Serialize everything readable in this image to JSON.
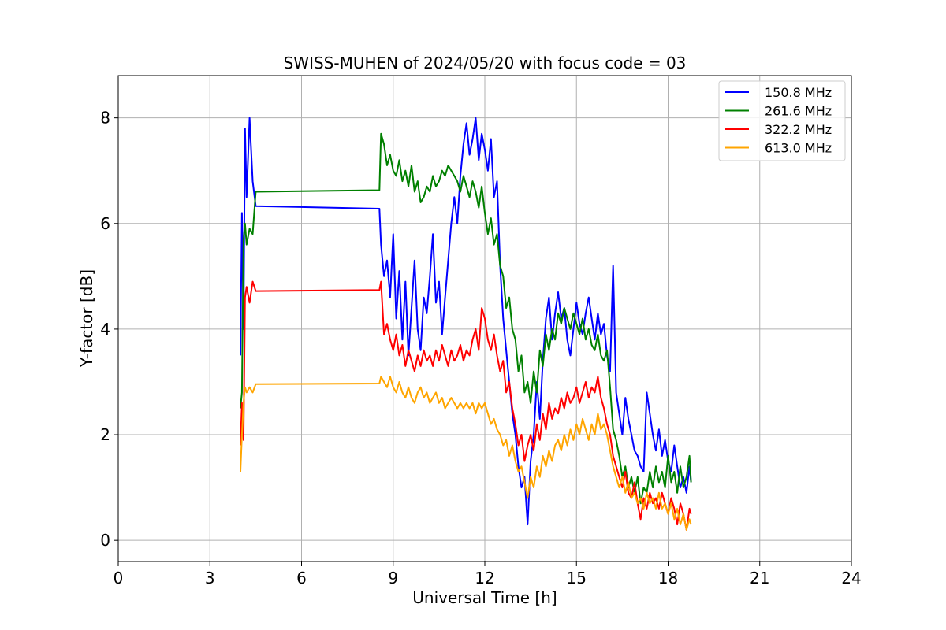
{
  "chart_data": {
    "type": "line",
    "title": "SWISS-MUHEN of 2024/05/20 with focus code = 03",
    "xlabel": "Universal Time [h]",
    "ylabel": "Y-factor [dB]",
    "xlim": [
      0,
      24
    ],
    "ylim": [
      -0.4,
      8.8
    ],
    "xticks": [
      0,
      3,
      6,
      9,
      12,
      15,
      18,
      21,
      24
    ],
    "yticks": [
      0,
      2,
      4,
      6,
      8
    ],
    "xtick_labels": [
      "0",
      "3",
      "6",
      "9",
      "12",
      "15",
      "18",
      "21",
      "24"
    ],
    "ytick_labels": [
      "0",
      "2",
      "4",
      "6",
      "8"
    ],
    "grid": true,
    "legend_position": "top-right",
    "series": [
      {
        "name": "150.8 MHz",
        "color": "#0000ff",
        "x": [
          4.0,
          4.05,
          4.1,
          4.15,
          4.2,
          4.3,
          4.4,
          4.5,
          8.55,
          8.6,
          8.7,
          8.8,
          8.9,
          9.0,
          9.1,
          9.2,
          9.3,
          9.4,
          9.5,
          9.6,
          9.7,
          9.8,
          9.9,
          10.0,
          10.1,
          10.2,
          10.3,
          10.4,
          10.5,
          10.6,
          10.7,
          10.8,
          10.9,
          11.0,
          11.1,
          11.2,
          11.3,
          11.4,
          11.5,
          11.6,
          11.7,
          11.8,
          11.9,
          12.0,
          12.1,
          12.2,
          12.3,
          12.4,
          12.5,
          12.6,
          12.7,
          12.8,
          12.9,
          13.0,
          13.1,
          13.2,
          13.3,
          13.4,
          13.5,
          13.6,
          13.7,
          13.8,
          13.9,
          14.0,
          14.1,
          14.2,
          14.3,
          14.4,
          14.5,
          14.6,
          14.7,
          14.8,
          14.9,
          15.0,
          15.1,
          15.2,
          15.3,
          15.4,
          15.5,
          15.6,
          15.7,
          15.8,
          15.9,
          16.0,
          16.1,
          16.2,
          16.3,
          16.4,
          16.5,
          16.6,
          16.7,
          16.8,
          16.9,
          17.0,
          17.1,
          17.2,
          17.3,
          17.4,
          17.5,
          17.6,
          17.7,
          17.8,
          17.9,
          18.0,
          18.1,
          18.2,
          18.3,
          18.4,
          18.5,
          18.6,
          18.7,
          18.75
        ],
        "y": [
          3.5,
          6.2,
          4.0,
          7.8,
          6.5,
          8.0,
          6.8,
          6.33,
          6.28,
          5.6,
          5.0,
          5.3,
          4.6,
          5.8,
          4.2,
          5.1,
          3.8,
          4.9,
          3.5,
          4.4,
          5.3,
          4.0,
          3.6,
          4.6,
          4.3,
          5.0,
          5.8,
          4.5,
          4.9,
          3.9,
          4.6,
          5.3,
          6.0,
          6.5,
          6.0,
          6.9,
          7.5,
          7.9,
          7.3,
          7.6,
          8.0,
          7.2,
          7.7,
          7.4,
          7.0,
          7.6,
          6.5,
          6.8,
          5.2,
          4.2,
          3.6,
          3.0,
          2.4,
          2.0,
          1.4,
          1.0,
          1.2,
          0.3,
          1.5,
          2.0,
          3.0,
          2.3,
          3.4,
          4.2,
          4.6,
          3.8,
          4.3,
          4.7,
          4.2,
          4.4,
          3.8,
          3.5,
          4.0,
          4.5,
          4.1,
          3.9,
          4.3,
          4.6,
          4.2,
          3.8,
          4.3,
          3.9,
          4.1,
          3.5,
          3.2,
          5.2,
          2.8,
          2.4,
          2.0,
          2.7,
          2.3,
          2.0,
          1.7,
          1.6,
          1.4,
          1.3,
          2.8,
          2.4,
          2.0,
          1.7,
          2.1,
          1.6,
          1.9,
          1.5,
          1.3,
          1.8,
          1.4,
          1.0,
          1.2,
          0.9,
          1.4,
          1.1
        ]
      },
      {
        "name": "261.6 MHz",
        "color": "#008000",
        "x": [
          4.0,
          4.05,
          4.1,
          4.15,
          4.2,
          4.3,
          4.4,
          4.5,
          8.55,
          8.6,
          8.7,
          8.8,
          8.9,
          9.0,
          9.1,
          9.2,
          9.3,
          9.4,
          9.5,
          9.6,
          9.7,
          9.8,
          9.9,
          10.0,
          10.1,
          10.2,
          10.3,
          10.4,
          10.5,
          10.6,
          10.7,
          10.8,
          10.9,
          11.0,
          11.1,
          11.2,
          11.3,
          11.4,
          11.5,
          11.6,
          11.7,
          11.8,
          11.9,
          12.0,
          12.1,
          12.2,
          12.3,
          12.4,
          12.5,
          12.6,
          12.7,
          12.8,
          12.9,
          13.0,
          13.1,
          13.2,
          13.3,
          13.4,
          13.5,
          13.6,
          13.7,
          13.8,
          13.9,
          14.0,
          14.1,
          14.2,
          14.3,
          14.4,
          14.5,
          14.6,
          14.7,
          14.8,
          14.9,
          15.0,
          15.1,
          15.2,
          15.3,
          15.4,
          15.5,
          15.6,
          15.7,
          15.8,
          15.9,
          16.0,
          16.1,
          16.2,
          16.3,
          16.4,
          16.5,
          16.6,
          16.7,
          16.8,
          16.9,
          17.0,
          17.1,
          17.2,
          17.3,
          17.4,
          17.5,
          17.6,
          17.7,
          17.8,
          17.9,
          18.0,
          18.1,
          18.2,
          18.3,
          18.4,
          18.5,
          18.6,
          18.7,
          18.75
        ],
        "y": [
          2.5,
          2.8,
          5.7,
          6.0,
          5.6,
          5.9,
          5.8,
          6.6,
          6.63,
          7.7,
          7.5,
          7.1,
          7.3,
          7.0,
          6.9,
          7.2,
          6.8,
          7.0,
          6.7,
          7.1,
          6.6,
          6.8,
          6.4,
          6.5,
          6.7,
          6.6,
          6.9,
          6.7,
          6.8,
          7.0,
          6.9,
          7.1,
          7.0,
          6.9,
          6.8,
          6.6,
          6.9,
          6.7,
          6.5,
          6.8,
          6.6,
          6.3,
          6.7,
          6.2,
          5.8,
          6.1,
          5.6,
          5.8,
          5.2,
          5.0,
          4.4,
          4.6,
          4.0,
          3.8,
          3.2,
          3.5,
          2.8,
          3.0,
          2.6,
          3.2,
          2.8,
          3.6,
          3.3,
          3.9,
          3.6,
          4.0,
          3.8,
          4.3,
          4.1,
          4.4,
          4.2,
          4.0,
          4.3,
          4.1,
          3.9,
          4.2,
          3.8,
          4.0,
          3.7,
          3.6,
          3.9,
          3.5,
          3.4,
          3.6,
          2.9,
          2.1,
          1.9,
          1.6,
          1.2,
          1.4,
          1.0,
          1.2,
          0.9,
          1.2,
          0.7,
          1.0,
          0.9,
          1.3,
          1.0,
          1.4,
          1.1,
          1.3,
          1.0,
          1.6,
          1.1,
          1.3,
          0.9,
          1.4,
          1.0,
          1.2,
          1.6,
          1.1
        ]
      },
      {
        "name": "322.2 MHz",
        "color": "#ff0000",
        "x": [
          4.0,
          4.05,
          4.1,
          4.15,
          4.2,
          4.3,
          4.4,
          4.5,
          8.55,
          8.6,
          8.7,
          8.8,
          8.9,
          9.0,
          9.1,
          9.2,
          9.3,
          9.4,
          9.5,
          9.6,
          9.7,
          9.8,
          9.9,
          10.0,
          10.1,
          10.2,
          10.3,
          10.4,
          10.5,
          10.6,
          10.7,
          10.8,
          10.9,
          11.0,
          11.1,
          11.2,
          11.3,
          11.4,
          11.5,
          11.6,
          11.7,
          11.8,
          11.9,
          12.0,
          12.1,
          12.2,
          12.3,
          12.4,
          12.5,
          12.6,
          12.7,
          12.8,
          12.9,
          13.0,
          13.1,
          13.2,
          13.3,
          13.4,
          13.5,
          13.6,
          13.7,
          13.8,
          13.9,
          14.0,
          14.1,
          14.2,
          14.3,
          14.4,
          14.5,
          14.6,
          14.7,
          14.8,
          14.9,
          15.0,
          15.1,
          15.2,
          15.3,
          15.4,
          15.5,
          15.6,
          15.7,
          15.8,
          15.9,
          16.0,
          16.1,
          16.2,
          16.3,
          16.4,
          16.5,
          16.6,
          16.7,
          16.8,
          16.9,
          17.0,
          17.1,
          17.2,
          17.3,
          17.4,
          17.5,
          17.6,
          17.7,
          17.8,
          17.9,
          18.0,
          18.1,
          18.2,
          18.3,
          18.4,
          18.5,
          18.6,
          18.7,
          18.75
        ],
        "y": [
          1.8,
          2.6,
          1.9,
          4.6,
          4.8,
          4.5,
          4.9,
          4.72,
          4.74,
          4.9,
          3.9,
          4.1,
          3.8,
          3.6,
          3.9,
          3.5,
          3.7,
          3.3,
          3.6,
          3.4,
          3.2,
          3.5,
          3.3,
          3.6,
          3.4,
          3.5,
          3.3,
          3.6,
          3.4,
          3.7,
          3.5,
          3.3,
          3.6,
          3.4,
          3.5,
          3.7,
          3.4,
          3.6,
          3.5,
          3.8,
          4.0,
          3.6,
          4.4,
          4.2,
          3.8,
          3.6,
          3.9,
          3.5,
          3.2,
          3.4,
          2.8,
          3.0,
          2.5,
          2.2,
          1.8,
          2.0,
          1.5,
          1.8,
          2.0,
          1.7,
          2.2,
          1.9,
          2.4,
          2.1,
          2.6,
          2.3,
          2.5,
          2.4,
          2.7,
          2.5,
          2.8,
          2.6,
          2.7,
          2.9,
          2.6,
          2.8,
          3.0,
          2.7,
          2.9,
          2.8,
          3.1,
          2.7,
          2.5,
          2.2,
          2.0,
          1.6,
          1.4,
          1.2,
          1.0,
          1.3,
          0.9,
          0.8,
          1.1,
          0.7,
          0.4,
          0.8,
          0.6,
          0.9,
          0.7,
          0.8,
          0.6,
          0.9,
          0.7,
          0.5,
          0.8,
          0.6,
          0.3,
          0.7,
          0.5,
          0.2,
          0.6,
          0.5
        ]
      },
      {
        "name": "613.0 MHz",
        "color": "#ffa500",
        "x": [
          4.0,
          4.05,
          4.1,
          4.15,
          4.2,
          4.3,
          4.4,
          4.5,
          8.55,
          8.6,
          8.7,
          8.8,
          8.9,
          9.0,
          9.1,
          9.2,
          9.3,
          9.4,
          9.5,
          9.6,
          9.7,
          9.8,
          9.9,
          10.0,
          10.1,
          10.2,
          10.3,
          10.4,
          10.5,
          10.6,
          10.7,
          10.8,
          10.9,
          11.0,
          11.1,
          11.2,
          11.3,
          11.4,
          11.5,
          11.6,
          11.7,
          11.8,
          11.9,
          12.0,
          12.1,
          12.2,
          12.3,
          12.4,
          12.5,
          12.6,
          12.7,
          12.8,
          12.9,
          13.0,
          13.1,
          13.2,
          13.3,
          13.4,
          13.5,
          13.6,
          13.7,
          13.8,
          13.9,
          14.0,
          14.1,
          14.2,
          14.3,
          14.4,
          14.5,
          14.6,
          14.7,
          14.8,
          14.9,
          15.0,
          15.1,
          15.2,
          15.3,
          15.4,
          15.5,
          15.6,
          15.7,
          15.8,
          15.9,
          16.0,
          16.1,
          16.2,
          16.3,
          16.4,
          16.5,
          16.6,
          16.7,
          16.8,
          16.9,
          17.0,
          17.1,
          17.2,
          17.3,
          17.4,
          17.5,
          17.6,
          17.7,
          17.8,
          17.9,
          18.0,
          18.1,
          18.2,
          18.3,
          18.4,
          18.5,
          18.6,
          18.7,
          18.75
        ],
        "y": [
          1.3,
          2.0,
          2.6,
          2.9,
          2.8,
          2.9,
          2.8,
          2.96,
          2.97,
          3.1,
          3.0,
          2.9,
          3.1,
          2.9,
          2.8,
          3.0,
          2.8,
          2.7,
          2.9,
          2.7,
          2.6,
          2.8,
          2.9,
          2.7,
          2.8,
          2.6,
          2.7,
          2.8,
          2.6,
          2.7,
          2.5,
          2.6,
          2.7,
          2.6,
          2.5,
          2.6,
          2.5,
          2.6,
          2.5,
          2.6,
          2.4,
          2.6,
          2.5,
          2.6,
          2.4,
          2.2,
          2.3,
          2.1,
          2.0,
          1.8,
          1.9,
          1.6,
          1.8,
          1.5,
          1.3,
          1.4,
          1.1,
          0.8,
          1.2,
          1.0,
          1.4,
          1.2,
          1.6,
          1.4,
          1.7,
          1.5,
          1.8,
          1.9,
          1.7,
          2.0,
          1.8,
          2.1,
          1.9,
          2.2,
          2.0,
          2.3,
          2.1,
          1.9,
          2.2,
          2.0,
          2.4,
          2.1,
          2.2,
          2.0,
          1.7,
          1.4,
          1.2,
          1.0,
          1.2,
          0.9,
          1.1,
          0.8,
          0.9,
          0.7,
          0.8,
          0.6,
          0.9,
          0.7,
          0.8,
          0.6,
          0.9,
          0.6,
          0.7,
          0.5,
          0.7,
          0.4,
          0.6,
          0.3,
          0.5,
          0.2,
          0.4,
          0.3
        ]
      }
    ]
  }
}
